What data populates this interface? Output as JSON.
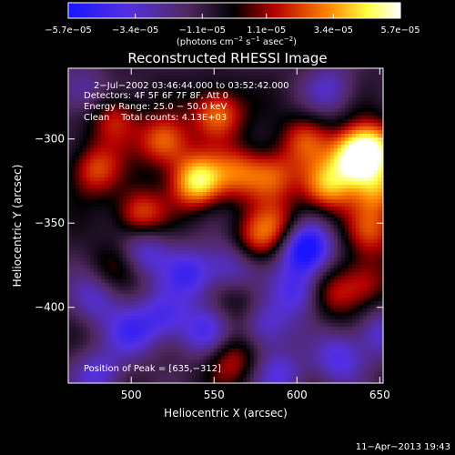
{
  "chart_data": {
    "type": "heatmap",
    "title": "Reconstructed RHESSI Image",
    "xlabel": "Heliocentric X (arcsec)",
    "ylabel": "Heliocentric Y (arcsec)",
    "xlim": [
      462,
      652
    ],
    "ylim": [
      -445,
      -258
    ],
    "x_ticks": [
      500,
      550,
      600,
      650
    ],
    "x_tick_labels": [
      "500",
      "550",
      "600",
      "650"
    ],
    "y_ticks": [
      -300,
      -350,
      -400
    ],
    "y_tick_labels": [
      "−300",
      "−350",
      "−400"
    ],
    "colorbar": {
      "range": [
        -5.7e-05,
        5.7e-05
      ],
      "ticks": [
        -5.7e-05,
        -3.4e-05,
        -1.1e-05,
        1.1e-05,
        3.4e-05,
        5.7e-05
      ],
      "tick_labels": [
        "−5.7e−05",
        "−3.4e−05",
        "−1.1e−05",
        "1.1e−05",
        "3.4e−05",
        "5.7e−05"
      ],
      "unit_main": "(photons cm",
      "unit_sup1": "−2",
      "unit_mid": " s",
      "unit_sup2": "−1",
      "unit_end": " asec",
      "unit_sup3": "−2",
      "unit_close": ")",
      "colormap": "RHESSI: blue → purple → black → red → orange → yellow → white"
    },
    "annotations": [
      "2−Jul−2002 03:46:44.000 to 03:52:42.000",
      "Detectors: 4F 5F 6F 7F 8F, Att 0",
      "Energy Range: 25.0 − 50.0 keV",
      "Clean    Total counts: 4.13E+03"
    ],
    "peak_label": "Position of Peak = [635,−312]",
    "peak": {
      "x": 635,
      "y": -312
    },
    "sources": [
      {
        "x": 540,
        "y": -325,
        "amp": 5.5e-05
      },
      {
        "x": 552,
        "y": -285,
        "amp": 4e-05
      },
      {
        "x": 520,
        "y": -302,
        "amp": 3.8e-05
      },
      {
        "x": 505,
        "y": -345,
        "amp": 3.5e-05
      },
      {
        "x": 478,
        "y": -318,
        "amp": 3.2e-05
      },
      {
        "x": 565,
        "y": -320,
        "amp": 3e-05
      },
      {
        "x": 490,
        "y": -288,
        "amp": 2.8e-05
      },
      {
        "x": 575,
        "y": -360,
        "amp": 2.6e-05
      },
      {
        "x": 585,
        "y": -322,
        "amp": 3.2e-05
      },
      {
        "x": 635,
        "y": -312,
        "amp": 5.7e-05
      },
      {
        "x": 618,
        "y": -328,
        "amp": 4.2e-05
      },
      {
        "x": 645,
        "y": -305,
        "amp": 4.5e-05
      },
      {
        "x": 650,
        "y": -330,
        "amp": 3.5e-05
      },
      {
        "x": 605,
        "y": -300,
        "amp": 2.8e-05
      },
      {
        "x": 590,
        "y": -352,
        "amp": 2.5e-05
      },
      {
        "x": 645,
        "y": -355,
        "amp": 2.8e-05
      },
      {
        "x": 640,
        "y": -385,
        "amp": 2.4e-05
      },
      {
        "x": 620,
        "y": -392,
        "amp": 2.2e-05
      },
      {
        "x": 560,
        "y": -430,
        "amp": 2.6e-05
      },
      {
        "x": 490,
        "y": -375,
        "amp": 1.5e-05
      },
      {
        "x": 565,
        "y": -400,
        "amp": 1.4e-05
      },
      {
        "x": 507,
        "y": -366,
        "amp": -3e-05
      },
      {
        "x": 535,
        "y": -380,
        "amp": -3.2e-05
      },
      {
        "x": 520,
        "y": -405,
        "amp": -3e-05
      },
      {
        "x": 500,
        "y": -415,
        "amp": -2.8e-05
      },
      {
        "x": 545,
        "y": -415,
        "amp": -3e-05
      },
      {
        "x": 580,
        "y": -410,
        "amp": -3e-05
      },
      {
        "x": 605,
        "y": -365,
        "amp": -5.7e-05
      },
      {
        "x": 600,
        "y": -390,
        "amp": -3.2e-05
      },
      {
        "x": 560,
        "y": -375,
        "amp": -2.6e-05
      },
      {
        "x": 480,
        "y": -440,
        "amp": -2.6e-05
      },
      {
        "x": 625,
        "y": -430,
        "amp": -3e-05
      },
      {
        "x": 590,
        "y": -440,
        "amp": -2.6e-05
      },
      {
        "x": 470,
        "y": -272,
        "amp": -2.2e-05
      },
      {
        "x": 478,
        "y": -395,
        "amp": -2.4e-05
      },
      {
        "x": 620,
        "y": -270,
        "amp": -2.2e-05
      },
      {
        "x": 650,
        "y": -415,
        "amp": -2.4e-05
      }
    ]
  },
  "footer": {
    "date_label": "11−Apr−2013 19:43"
  }
}
